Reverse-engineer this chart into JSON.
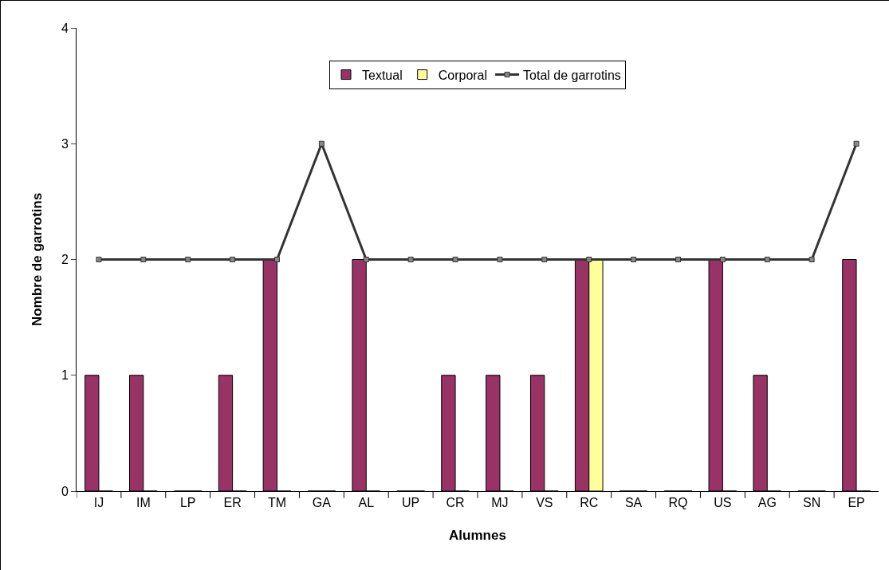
{
  "chart_data": {
    "type": "bar",
    "xlabel": "Alumnes",
    "ylabel": "Nombre de garrotins",
    "categories": [
      "IJ",
      "IM",
      "LP",
      "ER",
      "TM",
      "GA",
      "AL",
      "UP",
      "CR",
      "MJ",
      "VS",
      "RC",
      "SA",
      "RQ",
      "US",
      "AG",
      "SN",
      "EP"
    ],
    "series": [
      {
        "name": "Textual",
        "color": "#993366",
        "values": [
          1,
          1,
          0,
          1,
          2,
          0,
          2,
          0,
          1,
          1,
          1,
          2,
          0,
          0,
          2,
          1,
          0,
          2
        ]
      },
      {
        "name": "Corporal",
        "color": "#ffff99",
        "values": [
          0,
          0,
          0,
          0,
          0,
          0,
          0,
          0,
          0,
          0,
          0,
          2,
          0,
          0,
          0,
          0,
          0,
          0
        ]
      },
      {
        "name": "Total de garrotins",
        "type": "line",
        "color": "#333333",
        "marker": "square",
        "values": [
          2,
          2,
          2,
          2,
          2,
          3,
          2,
          2,
          2,
          2,
          2,
          2,
          2,
          2,
          2,
          2,
          2,
          3
        ]
      }
    ],
    "ylim": [
      0,
      4
    ],
    "yticks": [
      0,
      1,
      2,
      3,
      4
    ],
    "grid": false,
    "legend": "top"
  }
}
